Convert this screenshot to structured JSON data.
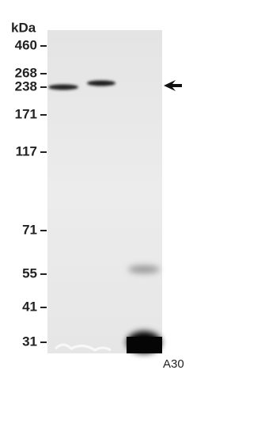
{
  "unit_label": "kDa",
  "markers": [
    "460",
    "268",
    "238",
    "171",
    "117",
    "71",
    "55",
    "41",
    "31"
  ],
  "lane_label": "A30"
}
